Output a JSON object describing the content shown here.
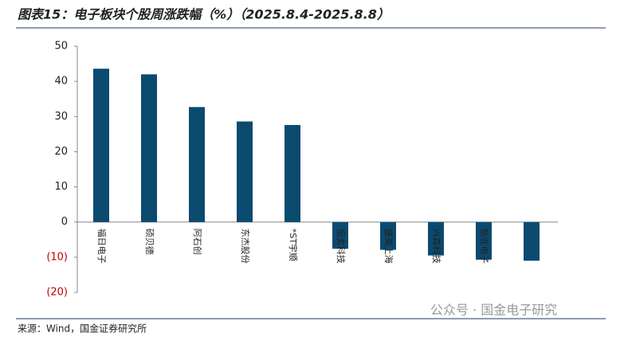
{
  "chart_data": {
    "type": "bar",
    "title": "图表15：电子板块个股周涨跌幅（%）（2025.8.4-2025.8.8）",
    "categories": [
      "福日电子",
      "硕贝德",
      "阿石创",
      "东杰股份",
      "*ST宇顺",
      "恒玄科技",
      "盛美上海",
      "兴森科技",
      "新亚电子",
      null
    ],
    "values": [
      43.6,
      42.0,
      32.7,
      28.6,
      27.6,
      -7.6,
      -7.9,
      -9.5,
      -10.7,
      -11.0
    ],
    "color": "#0b4a6f",
    "ylim": [
      -20,
      50
    ],
    "yticks": [
      {
        "value": -20,
        "label": "(20)"
      },
      {
        "value": -10,
        "label": "(10)"
      },
      0,
      10,
      20,
      30,
      40,
      50
    ],
    "negative_tick_color": "#c00000",
    "source": "来源：Wind，国金证券研究所",
    "watermark": "公众号 · 国金电子研究"
  }
}
